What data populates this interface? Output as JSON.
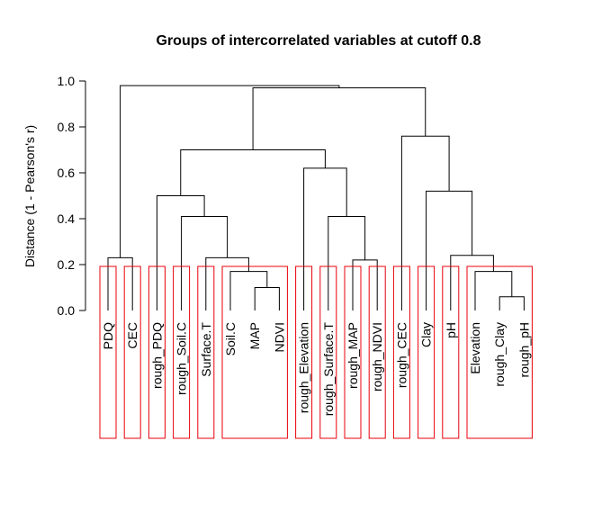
{
  "chart_data": {
    "type": "dendrogram",
    "title": "Groups of intercorrelated variables at cutoff 0.8",
    "ylabel": "Distance (1 - Pearson's r)",
    "ylim": [
      0,
      1.0
    ],
    "yticks": [
      "0.0",
      "0.2",
      "0.4",
      "0.6",
      "0.8",
      "1.0"
    ],
    "ytick_values": [
      0,
      0.2,
      0.4,
      0.6,
      0.8,
      1.0
    ],
    "leaves": [
      "PDQ",
      "CEC",
      "rough_PDQ",
      "rough_Soil.C",
      "Surface.T",
      "Soil.C",
      "MAP",
      "NDVI",
      "rough_Elevation",
      "rough_Surface.T",
      "rough_MAP",
      "rough_NDVI",
      "rough_CEC",
      "Clay",
      "pH",
      "Elevation",
      "rough_Clay",
      "rough_pH"
    ],
    "merges": [
      {
        "left": "MAP",
        "right": "NDVI",
        "height": 0.1
      },
      {
        "left": "Soil.C",
        "right": "MAP+NDVI",
        "height": 0.17
      },
      {
        "left": "Surface.T",
        "right": "Soil.C+MAP+NDVI",
        "height": 0.23
      },
      {
        "left": "rough_Soil.C",
        "right": "Surface.T+Soil.C+MAP+NDVI",
        "height": 0.41
      },
      {
        "left": "rough_PDQ",
        "right": "rough_Soil.C+...",
        "height": 0.5
      },
      {
        "left": "PDQ",
        "right": "CEC",
        "height": 0.23
      },
      {
        "left": "rough_MAP",
        "right": "rough_NDVI",
        "height": 0.22
      },
      {
        "left": "rough_Surface.T",
        "right": "rough_MAP+rough_NDVI",
        "height": 0.41
      },
      {
        "left": "rough_Elevation",
        "right": "rough_Surface.T+...",
        "height": 0.62
      },
      {
        "left": "rough_PDQ cluster",
        "right": "rough_Elevation cluster",
        "height": 0.7
      },
      {
        "left": "rough_Clay",
        "right": "rough_pH",
        "height": 0.06
      },
      {
        "left": "Elevation",
        "right": "rough_Clay+rough_pH",
        "height": 0.17
      },
      {
        "left": "pH",
        "right": "Elevation+rough_Clay+rough_pH",
        "height": 0.24
      },
      {
        "left": "Clay",
        "right": "pH+...",
        "height": 0.52
      },
      {
        "left": "rough_CEC",
        "right": "Clay+...",
        "height": 0.76
      },
      {
        "left": "rough_PDQ..rough_NDVI",
        "right": "rough_CEC..rough_pH",
        "height": 0.97
      },
      {
        "left": "PDQ+CEC",
        "right": "rest",
        "height": 0.98
      }
    ],
    "cutoff": 0.8,
    "groups": [
      [
        "PDQ"
      ],
      [
        "CEC"
      ],
      [
        "rough_PDQ"
      ],
      [
        "rough_Soil.C"
      ],
      [
        "Surface.T"
      ],
      [
        "Soil.C",
        "MAP",
        "NDVI"
      ],
      [
        "rough_Elevation"
      ],
      [
        "rough_Surface.T"
      ],
      [
        "rough_MAP"
      ],
      [
        "rough_NDVI"
      ],
      [
        "rough_CEC"
      ],
      [
        "Clay"
      ],
      [
        "pH"
      ],
      [
        "Elevation",
        "rough_Clay",
        "rough_pH"
      ]
    ],
    "group_box_color": "#e8000b",
    "grid": false
  }
}
